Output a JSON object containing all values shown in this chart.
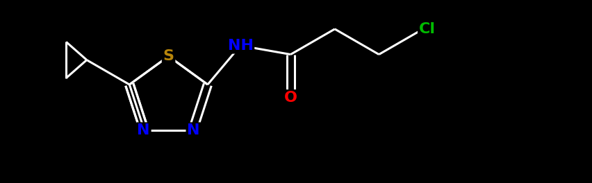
{
  "background_color": "#000000",
  "atom_colors": {
    "S": "#b8860b",
    "N": "#0000ff",
    "O": "#ff0000",
    "Cl": "#00bb00",
    "C": "#ffffff",
    "H": "#0000ff"
  },
  "bond_color": "#ffffff",
  "bond_width": 2.2,
  "figsize": [
    8.52,
    2.64
  ],
  "dpi": 100
}
